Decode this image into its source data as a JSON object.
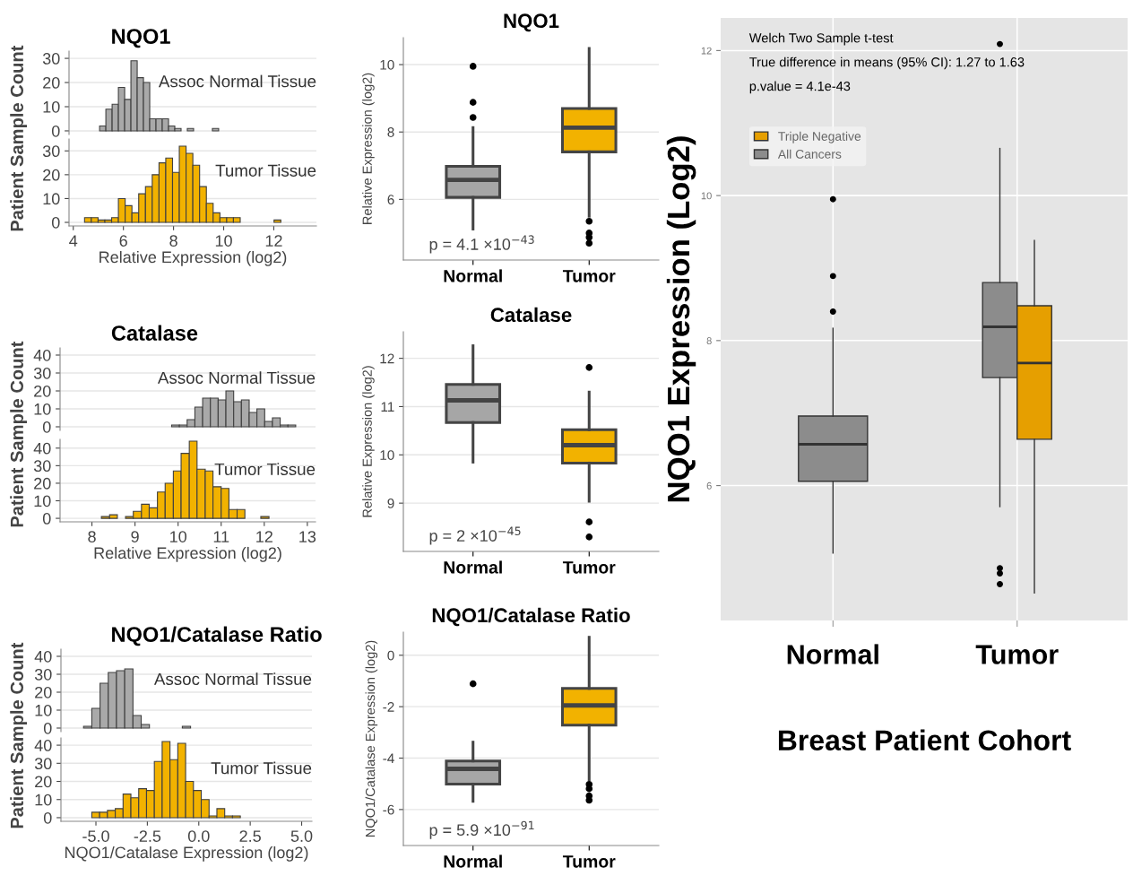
{
  "chart_data": [
    {
      "type": "histogram",
      "title": "NQO1",
      "ylabel": "Patient Sample Count",
      "color": "#a9a9a9",
      "annotations": [
        "Assoc Normal Tissue"
      ],
      "bins": [
        5.05,
        5.3,
        5.55,
        5.8,
        6.05,
        6.3,
        6.55,
        6.8,
        7.05,
        7.3,
        7.55,
        7.8,
        8.05,
        8.3,
        8.55,
        8.8,
        9.05,
        9.3,
        9.55,
        9.8
      ],
      "values": [
        2,
        9,
        11,
        18,
        13,
        29,
        22,
        20,
        5,
        5,
        5,
        2,
        1,
        0,
        1,
        0,
        0,
        0,
        1
      ],
      "xlim": [
        3.83,
        13.7
      ],
      "ylim": [
        -1.5,
        33
      ],
      "yticks": [
        0,
        10,
        20,
        30
      ],
      "grid": "y",
      "tick_labels": "y"
    },
    {
      "type": "histogram",
      "xlabel": "Relative Expression (log2)",
      "color": "#f2b200",
      "annotations": [
        "Tumor Tissue"
      ],
      "bins": [
        4.45,
        4.72,
        4.99,
        5.26,
        5.53,
        5.8,
        6.07,
        6.34,
        6.61,
        6.88,
        7.15,
        7.42,
        7.69,
        7.96,
        8.23,
        8.5,
        8.77,
        9.04,
        9.31,
        9.58,
        9.85,
        10.12,
        10.39,
        10.66,
        10.93,
        11.2,
        11.47,
        11.74,
        12.01,
        12.28
      ],
      "values": [
        2,
        2,
        1,
        1,
        2,
        10,
        7,
        4,
        12,
        15,
        20,
        25,
        27,
        21,
        32,
        29,
        24,
        15,
        8,
        4,
        2,
        2,
        2,
        0,
        0,
        0,
        0,
        0,
        1
      ],
      "xlim": [
        3.83,
        13.7
      ],
      "xticks": [
        4,
        6,
        8,
        10,
        12
      ],
      "ylim": [
        -1.5,
        35
      ],
      "yticks": [
        0,
        10,
        20,
        30
      ],
      "grid": "y"
    },
    {
      "type": "box",
      "title": "NQO1",
      "ylabel": "Relative Expression (log2)",
      "categories": [
        "Normal",
        "Tumor"
      ],
      "colors": [
        "#a6a6a6",
        "#f2b200"
      ],
      "boxes": [
        {
          "low": 5.12,
          "q1": 6.06,
          "median": 6.58,
          "q3": 6.98,
          "high": 8.13,
          "outliers": [
            9.95,
            8.88,
            8.43
          ]
        },
        {
          "low": 5.5,
          "q1": 7.41,
          "median": 8.13,
          "q3": 8.7,
          "high": 10.48,
          "outliers": [
            5.35,
            5.0,
            4.87,
            4.7
          ]
        }
      ],
      "ylim": [
        4.2,
        10.8
      ],
      "yticks": [
        6,
        8,
        10
      ],
      "grid": "y",
      "annotations": [
        "p = 4.1 ×10$^{−43}$"
      ]
    },
    {
      "type": "box",
      "ylabel": "NQO1 Expression (Log2)",
      "xlabel": "Breast Patient Cohort",
      "categories": [
        "Normal",
        "Tumor"
      ],
      "series": [
        {
          "name": "Triple Negative",
          "color": "#e69f00",
          "boxes": [
            null,
            {
              "low": 4.52,
              "q1": 6.64,
              "median": 7.69,
              "q3": 8.48,
              "high": 9.38
            }
          ]
        },
        {
          "name": "All Cancers",
          "color": "#8c8c8c",
          "boxes": [
            {
              "low": 5.07,
              "q1": 6.06,
              "median": 6.57,
              "q3": 6.96,
              "high": 8.17,
              "outliers": [
                9.95,
                8.89,
                8.4
              ]
            },
            {
              "low": 5.71,
              "q1": 7.49,
              "median": 8.19,
              "q3": 8.8,
              "high": 10.65,
              "outliers": [
                12.09,
                4.86,
                4.79,
                4.64
              ]
            }
          ]
        }
      ],
      "ylim": [
        4.14,
        12.45
      ],
      "yticks": [
        6,
        8,
        10,
        12
      ],
      "grid": true,
      "legend": "top left",
      "annotations": [
        "Welch Two Sample t-test",
        "True difference in means (95% CI): 1.27 to 1.63",
        "p.value = 4.1e-43"
      ]
    },
    {
      "type": "histogram",
      "title": "Catalase",
      "ylabel": "Patient Sample Count",
      "color": "#a9a9a9",
      "annotations": [
        "Assoc Normal Tissue"
      ],
      "bins": [
        9.85,
        10.03,
        10.21,
        10.39,
        10.57,
        10.75,
        10.93,
        11.11,
        11.29,
        11.47,
        11.65,
        11.83,
        12.01,
        12.19,
        12.37,
        12.55,
        12.73
      ],
      "values": [
        1,
        1,
        4,
        11,
        16,
        16,
        15,
        20,
        14,
        15,
        8,
        10,
        3,
        5,
        1,
        1
      ],
      "xlim": [
        7.26,
        13.19
      ],
      "ylim": [
        -2,
        44
      ],
      "yticks": [
        0,
        10,
        20,
        30,
        40
      ],
      "grid": "y",
      "tick_labels": "y"
    },
    {
      "type": "histogram",
      "xlabel": "Relative Expression (log2)",
      "color": "#f2b200",
      "annotations": [
        "Tumor Tissue"
      ],
      "bins": [
        8.22,
        8.41,
        8.59,
        8.78,
        8.96,
        9.15,
        9.33,
        9.52,
        9.7,
        9.89,
        10.07,
        10.26,
        10.44,
        10.63,
        10.81,
        11.0,
        11.18,
        11.37,
        11.55,
        11.74,
        11.92,
        12.11
      ],
      "values": [
        1,
        2,
        0,
        1,
        4,
        8,
        6,
        15,
        20,
        27,
        37,
        44,
        28,
        27,
        18,
        17,
        5,
        5,
        0,
        0,
        1
      ],
      "xlim": [
        7.26,
        13.19
      ],
      "xticks": [
        8,
        9,
        10,
        11,
        12,
        13
      ],
      "ylim": [
        -2,
        45
      ],
      "yticks": [
        0,
        10,
        20,
        30,
        40
      ],
      "grid": "y"
    },
    {
      "type": "box",
      "title": "Catalase",
      "ylabel": "Relative Expression (log2)",
      "categories": [
        "Normal",
        "Tumor"
      ],
      "colors": [
        "#a6a6a6",
        "#f2b200"
      ],
      "boxes": [
        {
          "low": 9.85,
          "q1": 10.67,
          "median": 11.13,
          "q3": 11.46,
          "high": 12.26
        },
        {
          "low": 9.04,
          "q1": 9.83,
          "median": 10.2,
          "q3": 10.52,
          "high": 11.3,
          "outliers": [
            11.81,
            8.61,
            8.3
          ]
        }
      ],
      "ylim": [
        8.0,
        12.55
      ],
      "yticks": [
        9,
        10,
        11,
        12
      ],
      "grid": "y",
      "annotations": [
        "p = 2 ×10$^{−45}$"
      ]
    },
    {
      "type": "histogram",
      "title": "NQO1/Catalase Ratio",
      "ylabel": "Patient Sample Count",
      "color": "#a9a9a9",
      "annotations": [
        "Assoc Normal Tissue"
      ],
      "bins": [
        -5.6,
        -5.2,
        -4.8,
        -4.4,
        -4.0,
        -3.6,
        -3.2,
        -2.8,
        -2.4,
        -2.0,
        -1.6,
        -1.2,
        -0.8,
        -0.4
      ],
      "values": [
        1,
        11,
        25,
        31,
        32,
        33,
        7,
        2,
        0,
        0,
        0,
        0,
        1
      ],
      "xlim": [
        -6.7,
        5.5
      ],
      "ylim": [
        -2,
        44
      ],
      "yticks": [
        0,
        10,
        20,
        30,
        40
      ],
      "grid": "y",
      "tick_labels": "y"
    },
    {
      "type": "histogram",
      "xlabel": "NQO1/Catalase Expression (log2)",
      "color": "#f2b200",
      "annotations": [
        "Tumor Tissue"
      ],
      "bins": [
        -5.2,
        -4.82,
        -4.44,
        -4.06,
        -3.68,
        -3.3,
        -2.92,
        -2.54,
        -2.16,
        -1.78,
        -1.4,
        -1.02,
        -0.64,
        -0.26,
        0.12,
        0.5,
        0.88,
        1.26,
        1.64,
        2.02
      ],
      "values": [
        3,
        3,
        4,
        5,
        13,
        11,
        16,
        15,
        31,
        42,
        32,
        41,
        20,
        15,
        10,
        1,
        5,
        1,
        1
      ],
      "xlim": [
        -6.7,
        5.5
      ],
      "xticks": [
        {
          "value": -5,
          "label": "-5.0"
        },
        {
          "value": -2.5,
          "label": "-2.5"
        },
        {
          "value": 0,
          "label": "0.0"
        },
        {
          "value": 2.5,
          "label": "2.5"
        },
        {
          "value": 5,
          "label": "5.0"
        }
      ],
      "ylim": [
        -2,
        44
      ],
      "yticks": [
        0,
        10,
        20,
        30,
        40
      ],
      "grid": "y"
    },
    {
      "type": "box",
      "title": "NQO1/Catalase Ratio",
      "ylabel": "NQO1/Catalase Expression (log2)",
      "categories": [
        "Normal",
        "Tumor"
      ],
      "colors": [
        "#a6a6a6",
        "#f2b200"
      ],
      "boxes": [
        {
          "low": -5.68,
          "q1": -5.01,
          "median": -4.42,
          "q3": -4.11,
          "high": -3.38,
          "outliers": [
            -1.11
          ]
        },
        {
          "low": -4.84,
          "q1": -2.72,
          "median": -1.95,
          "q3": -1.29,
          "high": 0.7,
          "outliers": [
            -5.02,
            -5.19,
            -5.47,
            -5.64
          ]
        }
      ],
      "ylim": [
        -7.4,
        0.9
      ],
      "yticks": [
        {
          "value": 0,
          "label": "0"
        },
        {
          "value": -2,
          "label": "-2"
        },
        {
          "value": -4,
          "label": "-4"
        },
        {
          "value": -6,
          "label": "-6"
        }
      ],
      "grid": "y",
      "annotations": [
        "p = 5.9 ×10$^{−91}$"
      ]
    }
  ]
}
